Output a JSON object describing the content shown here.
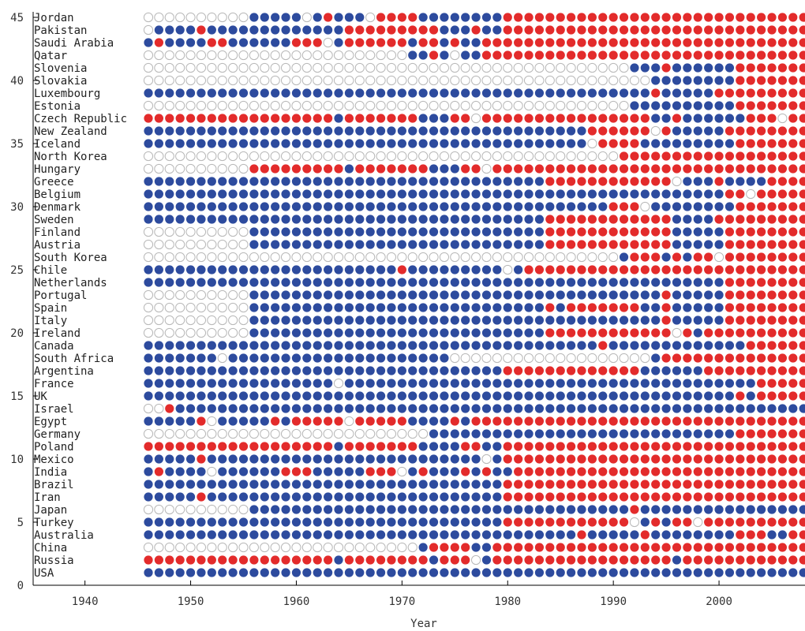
{
  "chart_data": {
    "type": "scatter",
    "xlabel": "Year",
    "ylabel": "",
    "xlim": [
      1935,
      2008
    ],
    "ylim": [
      0,
      45
    ],
    "x_ticks": [
      1940,
      1950,
      1960,
      1970,
      1980,
      1990,
      2000
    ],
    "y_ticks": [
      0,
      5,
      10,
      15,
      20,
      25,
      30,
      35,
      40,
      45
    ],
    "start_year": 1946,
    "end_year": 2008,
    "legend": null,
    "colors": {
      "b": "#2d4b9e",
      "r": "#e32b2b",
      "o": "#ffffff",
      "outline": "#b8b8b8"
    },
    "encoding_note": "Each row string has one character per year from 1946 to 2008: b = blue dot, r = red dot, o = open (empty) dot.",
    "rows": [
      {
        "country": "USA",
        "y": 1,
        "dots": "bbbbbbbbbbbbbbbbbbbbbbbbbbbbbbbbbbbbbbbbbbbbbbbbbbbbbbbbbbbbbbb"
      },
      {
        "country": "Russia",
        "y": 2,
        "dots": "rrrrrrrrrrrrrrrrrrbrrrrrrrrbrrrobrrrrrrrrrrrrrrrrrbrrrrrrrrrrrr"
      },
      {
        "country": "China",
        "y": 3,
        "dots": "oooooooooooooooooooooooooobrrrrbbrrrrrrrrrrrrrrrrrrrrrrrrrrrrrr"
      },
      {
        "country": "Australia",
        "y": 4,
        "dots": "bbbbbbbbbbbbbbbbbbbbbbbbbbbbbbbbbbbbbbbbbrbbbbbrbbbbbbbbrrrbbrr"
      },
      {
        "country": "Turkey",
        "y": 5,
        "dots": "bbbbbbbbbbbbbbbbbbbbbbbbbbbbbbbbbbrrrrrrrrrrrrobrbrrorrrrrrrrrr"
      },
      {
        "country": "Japan",
        "y": 6,
        "dots": "oooooooooobbbbbbbbbbbbbbbbbbbbbbbbbbbbbbbbbbbbrbbbbbbbbbbbbbbbb"
      },
      {
        "country": "Iran",
        "y": 7,
        "dots": "bbbbbrbbbbbbbbbbbbbbbbbbbbbbbbbbbbrrrrrrrrrrrrrrrrrrrrrrrrrrrrr"
      },
      {
        "country": "Brazil",
        "y": 8,
        "dots": "bbbbbbbbbbbbbbbbbbbbbbbbbbbbbbbbbbrrrrrrrrrrrrrrrrrrrrrrrrrrrrr"
      },
      {
        "country": "India",
        "y": 9,
        "dots": "brbbbbobbbbbbrrrbbbbbrrrobrbbbrbrbbrrrrrrrrrrrrrrrrrrrrrrrrrrrr"
      },
      {
        "country": "Mexico",
        "y": 10,
        "dots": "bbbbbrbbbbbbbbbbbbbbbbbbbbbbbbbbobrrrrrrrrrrrrrrrrrrrrrrrrrrrrr"
      },
      {
        "country": "Poland",
        "y": 11,
        "dots": "rrrrrrrrrrrrrrrrrrbrrrrrrrbbbbrrbbrrrrrrrrrrrrrrrrrrrrrrrrrrrrr"
      },
      {
        "country": "Germany",
        "y": 12,
        "dots": "ooooooooooooooooooooooooooobbbbbbbbbbbbbbbbbbbbbbbbbbbbbrrrrrrr"
      },
      {
        "country": "Egypt",
        "y": 13,
        "dots": "bbbbbrobbbbbrbrrrrrorrrrrbbbbrbrrrrrrrrrrrrrrrrrrrrrrrrrrrrrrrr"
      },
      {
        "country": "Israel",
        "y": 14,
        "dots": "oorbbbbbbbbbbbbbbbbbbbbbbbbbbbbbbbbbbbbbbbbbbbbbbbbbbbbbbbbbbbb"
      },
      {
        "country": "UK",
        "y": 15,
        "dots": "bbbbbbbbbbbbbbbbbbbbbbbbbbbbbbbbbbbbbbbbbbbbbbbbbbbbbbbbrbrrrrr"
      },
      {
        "country": "France",
        "y": 16,
        "dots": "bbbbbbbbbbbbbbbbbbobbbbbbbbbbbbbbbbbbbbbbbbbbbbbbbbbbbbbbbrrrrr"
      },
      {
        "country": "Argentina",
        "y": 17,
        "dots": "bbbbbbbbbbbbbbbbbbbbbbbbbbbbbbbbbbrrrrrrrrrrrrrbbbbbbrrrrrrrrrr"
      },
      {
        "country": "South Africa",
        "y": 18,
        "dots": "bbbbbbbobbbbbbbbbbbbbbbbbbbbbooooooooooooooooooobrrrrrrrrrrrrrr"
      },
      {
        "country": "Canada",
        "y": 19,
        "dots": "bbbbbbbbbbbbbbbbbbbbbbbbbbbbbbbbbbbbbbbbbbbrbbbbbbbbbbbbbrrrrrr"
      },
      {
        "country": "Ireland",
        "y": 20,
        "dots": "oooooooooobbbbbbbbbbbbbbbbbbbbbbbbbbbbrrrrrrrrrrrrorbrrrrrrrrrr"
      },
      {
        "country": "Italy",
        "y": 21,
        "dots": "oooooooooobbbbbbbbbbbbbbbbbbbbbbbbbbbbbbbbbbbbbbbrbbbbbrrrrrrrr"
      },
      {
        "country": "Spain",
        "y": 22,
        "dots": "oooooooooobbbbbbbbbbbbbbbbbbbbbbbbbbbbrbrrrrrrrbbrbbbbbrrrrrrrr"
      },
      {
        "country": "Portugal",
        "y": 23,
        "dots": "oooooooooobbbbbbbbbbbbbbbbbbbbbbbbbbbbbbbbbbbbbbbrbbbbbrrrrrrrr"
      },
      {
        "country": "Netherlands",
        "y": 24,
        "dots": "bbbbbbbbbbbbbbbbbbbbbbbbbbbbbbbbbbbbbbbbbbbbbbbbbbbbbbbrrrrrrrr"
      },
      {
        "country": "Chile",
        "y": 25,
        "dots": "bbbbbbbbbbbbbbbbbbbbbbbbrbbbbbbbbbobrrrrrrrrrrrrrrrrrrrrrrrrrrr"
      },
      {
        "country": "South Korea",
        "y": 26,
        "dots": "ooooooooooooooooooooooooooooooooooooooooooooobrrrbrbrrorrrrrrrr"
      },
      {
        "country": "Austria",
        "y": 27,
        "dots": "oooooooooobbbbbbbbbbbbbbbbbbbbbbbbbbbbrrrrrrrrrrrrbbbbbrrrrrrrr"
      },
      {
        "country": "Finland",
        "y": 28,
        "dots": "oooooooooobbbbbbbbbbbbbbbbbbbbbbbbbbbbrrrrrrrrrrrrbbbbbrrrrrrrr"
      },
      {
        "country": "Sweden",
        "y": 29,
        "dots": "bbbbbbbbbbbbbbbbbbbbbbbbbbbbbbbbbbbbbbrrrrrrrrrrrrbbbbrrrrrrrrr"
      },
      {
        "country": "Denmark",
        "y": 30,
        "dots": "bbbbbbbbbbbbbbbbbbbbbbbbbbbbbbbbbbbbbbbbbbbbrrrobbbbbbbbrrrrrrr"
      },
      {
        "country": "Belgium",
        "y": 31,
        "dots": "bbbbbbbbbbbbbbbbbbbbbbbbbbbbbbbbbbbbbbbbbbbbbbbbbbbbbbbrrorrrrr"
      },
      {
        "country": "Greece",
        "y": 32,
        "dots": "bbbbbbbbbbbbbbbbbbbbbbbbbbbbbbbbbbbbbbrrrrrrrrrrrrobbbrbbbbrrrr"
      },
      {
        "country": "Hungary",
        "y": 33,
        "dots": "oooooooooorrrrrrrrrbrrrrrrrbbbrrorrrrrrrrrrrrrrrrrrrrrrrrrrrrrr"
      },
      {
        "country": "North Korea",
        "y": 34,
        "dots": "ooooooooooooooooooooooooooooooooooooooooooooorrrrrrrrrrrrrrrrrr"
      },
      {
        "country": "Iceland",
        "y": 35,
        "dots": "bbbbbbbbbbbbbbbbbbbbbbbbbbbbbbbbbbbbbbbbbborrrrbbbbbbbbbrrrrrrr"
      },
      {
        "country": "New Zealand",
        "y": 36,
        "dots": "bbbbbbbbbbbbbbbbbbbbbbbbbbbbbbbbbbbbbbbbbbrrrrrrorbbbbbrrrrrrrr"
      },
      {
        "country": "Czech Republic",
        "y": 37,
        "dots": "rrrrrrrrrrrrrrrrrrbrrrrrrrbbbrrorrrrrrrrrrrrrrrrbbrbbbbbbrrrorr"
      },
      {
        "country": "Estonia",
        "y": 38,
        "dots": "oooooooooooooooooooooooooooooooooooooooooooooobbbbbbbbbbrrrrrrr"
      },
      {
        "country": "Luxembourg",
        "y": 39,
        "dots": "bbbbbbbbbbbbbbbbbbbbbbbbbbbbbbbbbbbbbbbbbbbbbbbbrbbbbbrrrrrrrrr"
      },
      {
        "country": "Slovakia",
        "y": 40,
        "dots": "oooooooooooooooooooooooooooooooooooooooooooooooobbbbbbbbrrrrrrr"
      },
      {
        "country": "Slovenia",
        "y": 41,
        "dots": "oooooooooooooooooooooooooooooooooooooooooooooobbbrbbbbbbrrrrrrr"
      },
      {
        "country": "Qatar",
        "y": 42,
        "dots": "ooooooooooooooooooooooooobbrbobbrrrrrrrrrrrrrrrrrrrrrrrrrrrrrrr"
      },
      {
        "country": "Saudi Arabia",
        "y": 43,
        "dots": "brbbbbrrbbbbbbrrrobrrrrrrbrrbrbbrrrrrrrrrrrrrrrrrrrrrrrrrrrrrrr"
      },
      {
        "country": "Pakistan",
        "y": 44,
        "dots": "obbbbrbbbbbbbbbbbbbrrrrrrrrrbbbrbbrrrrrrrrrrrrrrrrrrrrrrrrrrrrr"
      },
      {
        "country": "Jordan",
        "y": 45,
        "dots": "oooooooooobbbbbobrbbborrrrbbbbbbbbrrrrrrrrrrrrrrrrrrrrrrrrrrrrr"
      }
    ]
  }
}
